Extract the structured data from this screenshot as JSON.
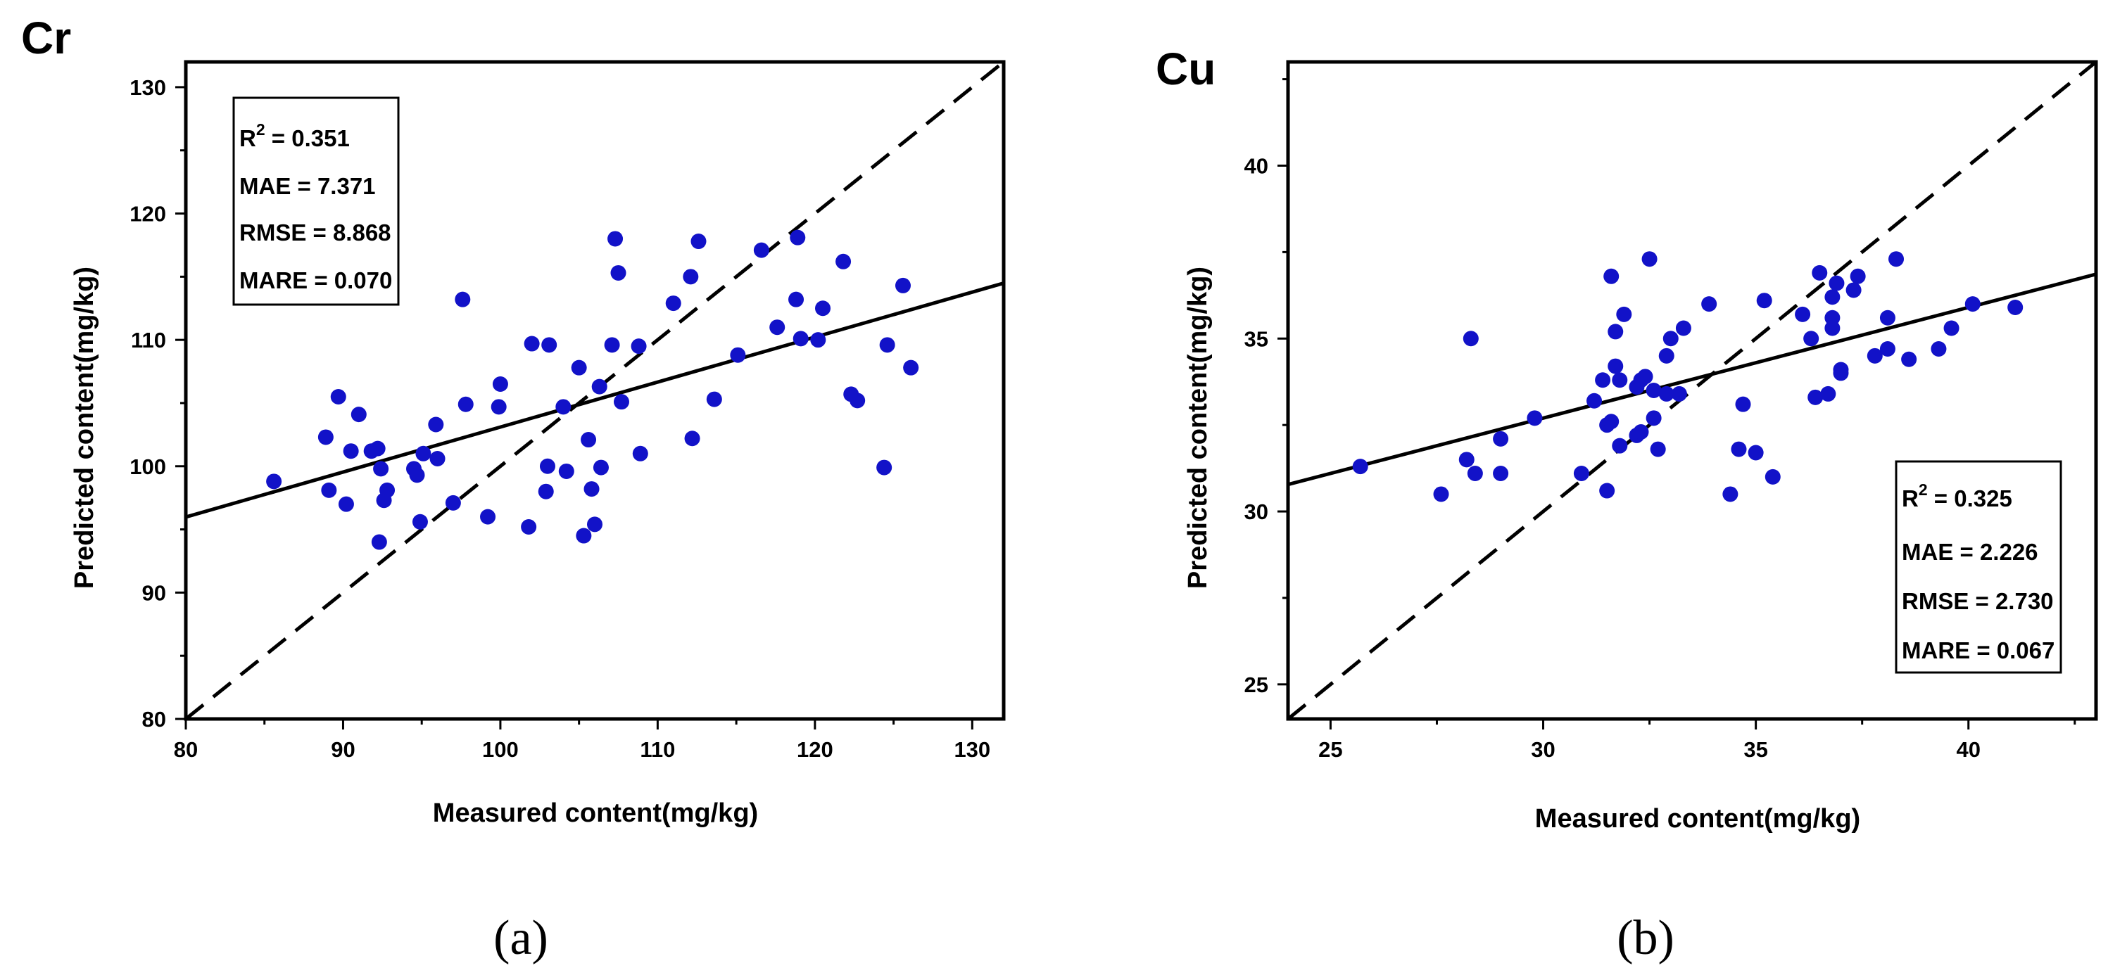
{
  "chart_data": [
    {
      "type": "scatter",
      "title": "Cr",
      "caption": "(a)",
      "xlabel": "Measured content(mg/kg)",
      "ylabel": "Predicted content(mg/kg)",
      "xlim": [
        80,
        132
      ],
      "ylim": [
        80,
        132
      ],
      "xticks": [
        80,
        90,
        100,
        110,
        120,
        130
      ],
      "yticks": [
        80,
        90,
        100,
        110,
        120,
        130
      ],
      "stats": {
        "r2_label": "R",
        "r2_sup": "2",
        "r2_value": " = 0.351",
        "mae": "MAE = 7.371",
        "rmse": "RMSE = 8.868",
        "mare": "MARE = 0.070"
      },
      "stats_position": "top-left",
      "fit_line": {
        "slope": 0.356,
        "intercept": 67.5
      },
      "identity_line": true,
      "marker_color": "#1212c8",
      "points": [
        [
          85.6,
          98.8
        ],
        [
          88.9,
          102.3
        ],
        [
          89.1,
          98.1
        ],
        [
          89.7,
          105.5
        ],
        [
          90.2,
          97.0
        ],
        [
          90.5,
          101.2
        ],
        [
          91.0,
          104.1
        ],
        [
          91.8,
          101.2
        ],
        [
          92.2,
          101.4
        ],
        [
          92.3,
          94.0
        ],
        [
          92.4,
          99.8
        ],
        [
          92.6,
          97.3
        ],
        [
          92.8,
          98.1
        ],
        [
          94.5,
          99.8
        ],
        [
          94.7,
          99.3
        ],
        [
          94.9,
          95.6
        ],
        [
          95.1,
          101.0
        ],
        [
          95.9,
          103.3
        ],
        [
          96.0,
          100.6
        ],
        [
          97.0,
          97.1
        ],
        [
          97.6,
          113.2
        ],
        [
          97.8,
          104.9
        ],
        [
          99.2,
          96.0
        ],
        [
          99.9,
          104.7
        ],
        [
          100.0,
          106.5
        ],
        [
          101.8,
          95.2
        ],
        [
          102.0,
          109.7
        ],
        [
          102.9,
          98.0
        ],
        [
          103.0,
          100.0
        ],
        [
          103.1,
          109.6
        ],
        [
          104.0,
          104.7
        ],
        [
          104.2,
          99.6
        ],
        [
          105.0,
          107.8
        ],
        [
          105.3,
          94.5
        ],
        [
          105.6,
          102.1
        ],
        [
          105.8,
          98.2
        ],
        [
          106.0,
          95.4
        ],
        [
          106.3,
          106.3
        ],
        [
          106.4,
          99.9
        ],
        [
          107.1,
          109.6
        ],
        [
          107.3,
          118.0
        ],
        [
          107.5,
          115.3
        ],
        [
          107.7,
          105.1
        ],
        [
          108.8,
          109.5
        ],
        [
          108.9,
          101.0
        ],
        [
          111.0,
          112.9
        ],
        [
          112.1,
          115.0
        ],
        [
          112.2,
          102.2
        ],
        [
          112.6,
          117.8
        ],
        [
          113.6,
          105.3
        ],
        [
          115.1,
          108.8
        ],
        [
          116.6,
          117.1
        ],
        [
          117.6,
          111.0
        ],
        [
          118.8,
          113.2
        ],
        [
          118.9,
          118.1
        ],
        [
          119.1,
          110.1
        ],
        [
          120.2,
          110.0
        ],
        [
          120.5,
          112.5
        ],
        [
          121.8,
          116.2
        ],
        [
          122.3,
          105.7
        ],
        [
          122.7,
          105.2
        ],
        [
          124.4,
          99.9
        ],
        [
          124.6,
          109.6
        ],
        [
          125.6,
          114.3
        ],
        [
          126.1,
          107.8
        ]
      ]
    },
    {
      "type": "scatter",
      "title": "Cu",
      "caption": "(b)",
      "xlabel": "Measured content(mg/kg)",
      "ylabel": "Predicted content(mg/kg)",
      "xlim": [
        24,
        43
      ],
      "ylim": [
        24,
        43
      ],
      "xticks": [
        25,
        30,
        35,
        40
      ],
      "yticks": [
        25,
        30,
        35,
        40
      ],
      "stats": {
        "r2_label": "R",
        "r2_sup": "2",
        "r2_value": " = 0.325",
        "mae": "MAE = 2.226",
        "rmse": "RMSE = 2.730",
        "mare": "MARE = 0.067"
      },
      "stats_position": "bottom-right",
      "fit_line": {
        "slope": 0.32,
        "intercept": 23.1
      },
      "identity_line": true,
      "marker_color": "#1212c8",
      "points": [
        [
          25.7,
          31.3
        ],
        [
          27.6,
          30.5
        ],
        [
          28.2,
          31.5
        ],
        [
          28.3,
          35.0
        ],
        [
          28.4,
          31.1
        ],
        [
          29.0,
          31.1
        ],
        [
          29.0,
          32.1
        ],
        [
          29.8,
          32.7
        ],
        [
          30.9,
          31.1
        ],
        [
          31.2,
          33.2
        ],
        [
          31.4,
          33.8
        ],
        [
          31.5,
          30.6
        ],
        [
          31.5,
          32.5
        ],
        [
          31.6,
          32.6
        ],
        [
          31.6,
          36.8
        ],
        [
          31.7,
          34.2
        ],
        [
          31.7,
          35.2
        ],
        [
          31.8,
          31.9
        ],
        [
          31.8,
          33.8
        ],
        [
          31.9,
          35.7
        ],
        [
          32.2,
          32.2
        ],
        [
          32.2,
          33.6
        ],
        [
          32.3,
          33.8
        ],
        [
          32.3,
          32.3
        ],
        [
          32.4,
          33.9
        ],
        [
          32.5,
          37.3
        ],
        [
          32.6,
          33.5
        ],
        [
          32.6,
          32.7
        ],
        [
          32.7,
          31.8
        ],
        [
          32.9,
          33.4
        ],
        [
          32.9,
          34.5
        ],
        [
          33.0,
          35.0
        ],
        [
          33.2,
          33.4
        ],
        [
          33.3,
          35.3
        ],
        [
          33.9,
          36.0
        ],
        [
          34.4,
          30.5
        ],
        [
          34.6,
          31.8
        ],
        [
          34.7,
          33.1
        ],
        [
          35.0,
          31.7
        ],
        [
          35.2,
          36.1
        ],
        [
          35.4,
          31.0
        ],
        [
          36.1,
          35.7
        ],
        [
          36.3,
          35.0
        ],
        [
          36.4,
          33.3
        ],
        [
          36.5,
          36.9
        ],
        [
          36.7,
          33.4
        ],
        [
          36.8,
          35.6
        ],
        [
          36.8,
          35.3
        ],
        [
          36.8,
          36.2
        ],
        [
          36.9,
          36.6
        ],
        [
          37.0,
          34.0
        ],
        [
          37.0,
          34.1
        ],
        [
          37.3,
          36.4
        ],
        [
          37.4,
          36.8
        ],
        [
          37.8,
          34.5
        ],
        [
          38.1,
          35.6
        ],
        [
          38.1,
          34.7
        ],
        [
          38.3,
          37.3
        ],
        [
          38.6,
          34.4
        ],
        [
          39.3,
          34.7
        ],
        [
          39.6,
          35.3
        ],
        [
          40.1,
          36.0
        ],
        [
          41.1,
          35.9
        ]
      ]
    }
  ]
}
